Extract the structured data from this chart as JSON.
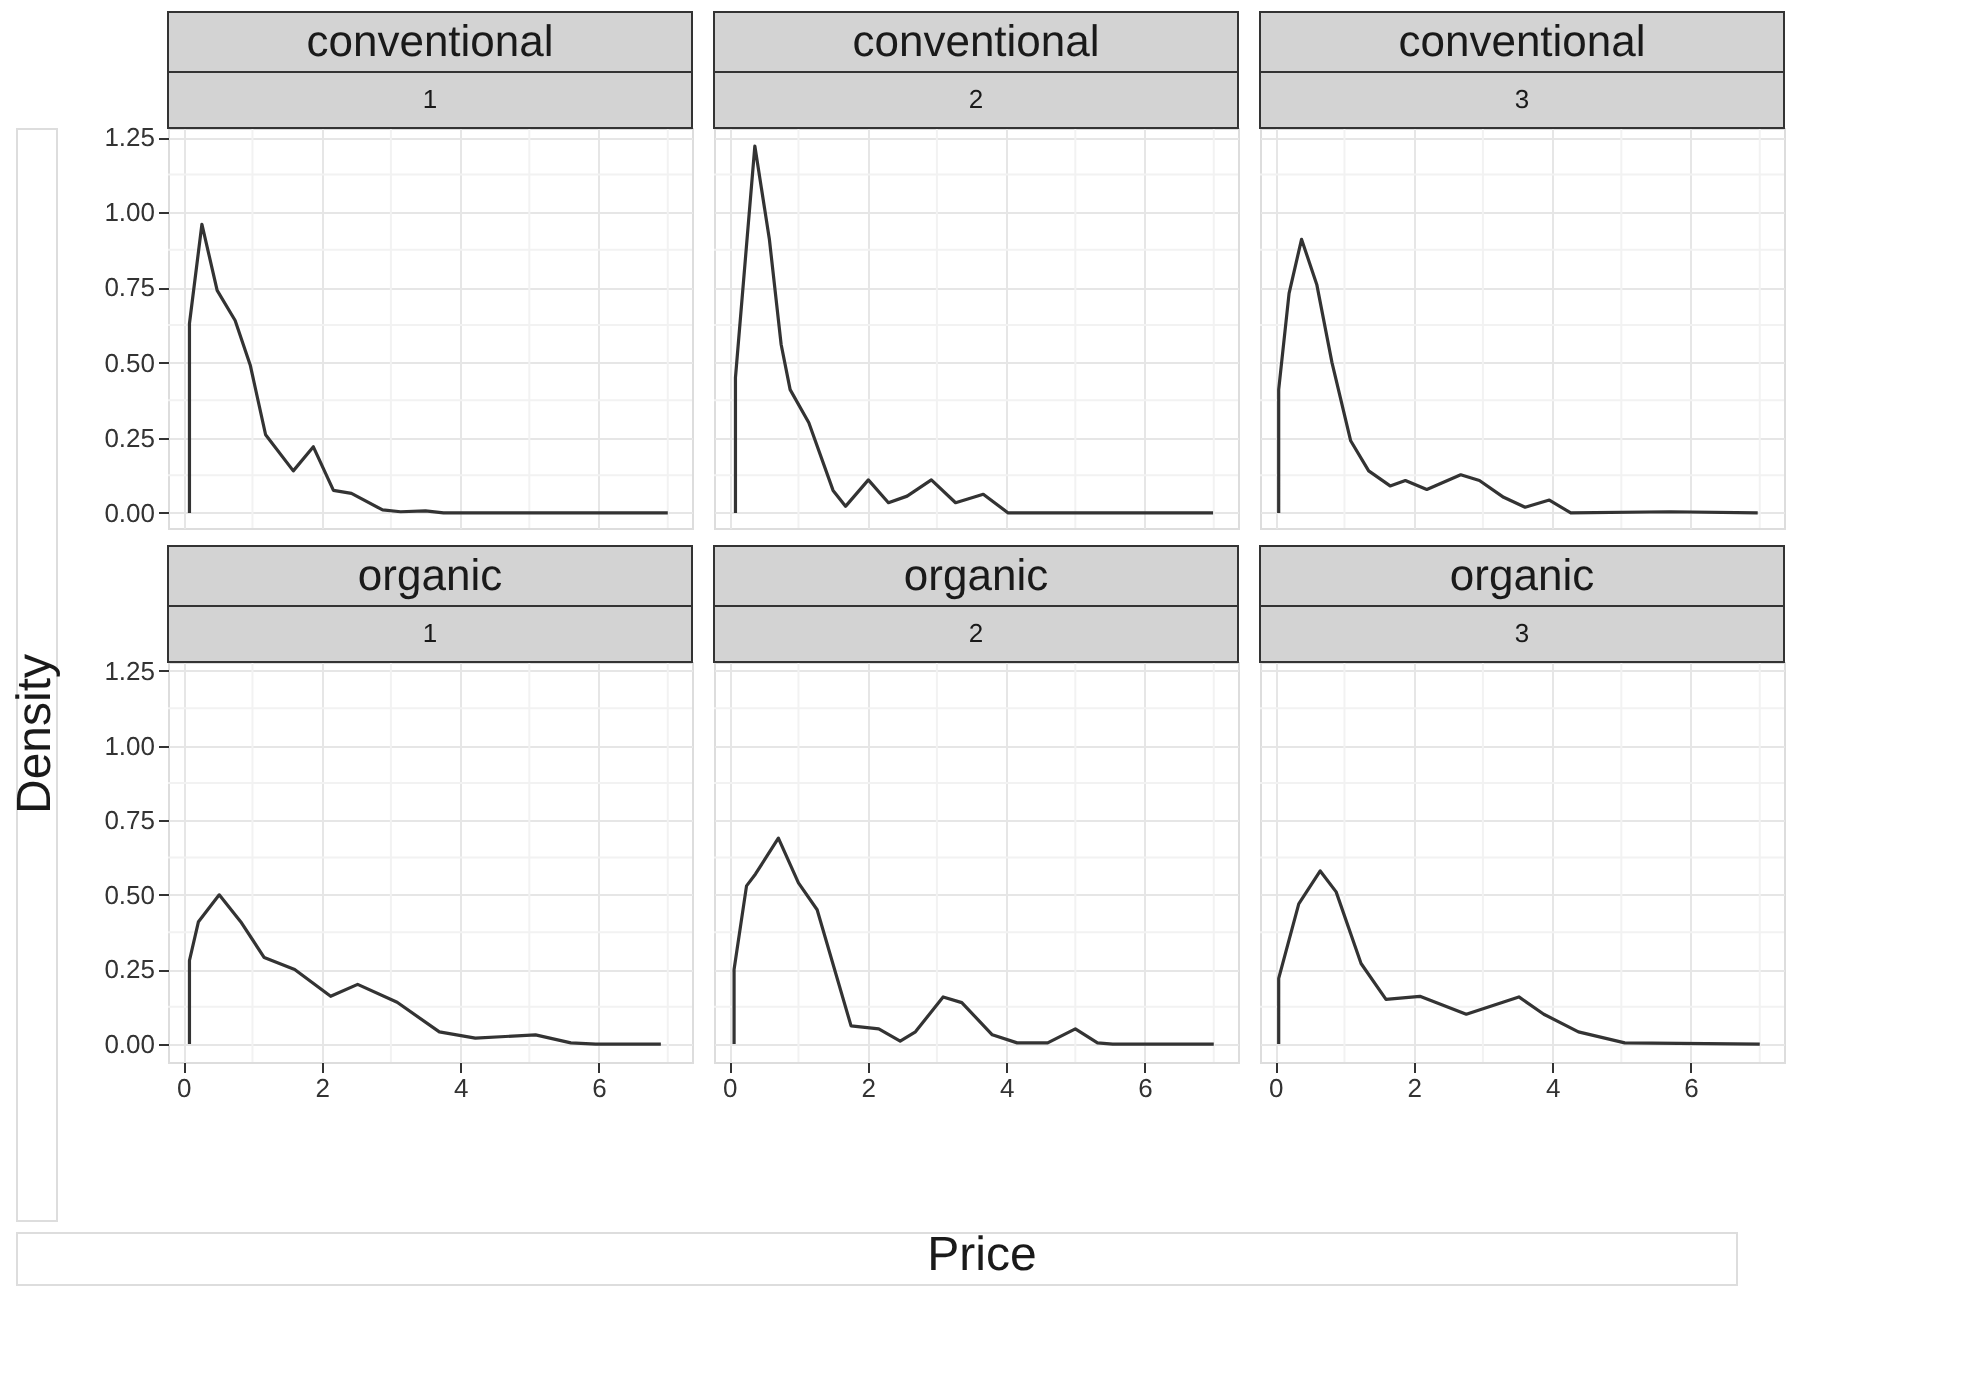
{
  "chart_data": [
    {
      "type": "line",
      "title": "conventional",
      "subtitle": "1",
      "ylabel": "Density",
      "tick_labels": "y",
      "grid": true,
      "xlim": [
        -0.22,
        7.35
      ],
      "ylim": [
        -0.05,
        1.28
      ],
      "xticks": [
        0,
        2,
        4,
        6
      ],
      "yticks": [
        {
          "value": 0,
          "label": "0.00"
        },
        {
          "value": 0.25,
          "label": "0.25"
        },
        {
          "value": 0.5,
          "label": "0.50"
        },
        {
          "value": 0.75,
          "label": "0.75"
        },
        {
          "value": 1,
          "label": "1.00"
        },
        {
          "value": 1.25,
          "label": "1.25"
        }
      ],
      "series": [
        {
          "color": "#333333",
          "x": [
            0.09,
            0.09,
            0.27,
            0.49,
            0.75,
            0.97,
            1.19,
            1.59,
            1.88,
            2.17,
            2.43,
            2.88,
            3.14,
            3.5,
            3.76,
            7.0
          ],
          "values": [
            0,
            0.63,
            0.96,
            0.74,
            0.64,
            0.49,
            0.26,
            0.14,
            0.22,
            0.075,
            0.065,
            0.01,
            0.004,
            0.007,
            0,
            0
          ]
        }
      ]
    },
    {
      "type": "line",
      "title": "conventional",
      "subtitle": "2",
      "tick_labels": false,
      "grid": true,
      "xlim": [
        -0.22,
        7.35
      ],
      "ylim": [
        -0.05,
        1.28
      ],
      "xticks": [
        0,
        2,
        4,
        6
      ],
      "yticks": [
        0,
        0.25,
        0.5,
        0.75,
        1,
        1.25
      ],
      "series": [
        {
          "color": "#333333",
          "x": [
            0.09,
            0.09,
            0.37,
            0.58,
            0.75,
            0.88,
            1.15,
            1.5,
            1.68,
            2.01,
            2.3,
            2.57,
            2.92,
            3.27,
            3.67,
            4.03,
            6.99
          ],
          "values": [
            0,
            0.45,
            1.22,
            0.91,
            0.56,
            0.41,
            0.3,
            0.075,
            0.022,
            0.11,
            0.034,
            0.056,
            0.11,
            0.034,
            0.062,
            0,
            0
          ]
        }
      ]
    },
    {
      "type": "line",
      "title": "conventional",
      "subtitle": "3",
      "tick_labels": false,
      "grid": true,
      "xlim": [
        -0.22,
        7.35
      ],
      "ylim": [
        -0.05,
        1.28
      ],
      "xticks": [
        0,
        2,
        4,
        6
      ],
      "yticks": [
        0,
        0.25,
        0.5,
        0.75,
        1,
        1.25
      ],
      "series": [
        {
          "color": "#333333",
          "x": [
            0.05,
            0.05,
            0.2,
            0.38,
            0.6,
            0.82,
            1.09,
            1.35,
            1.66,
            1.88,
            2.19,
            2.68,
            2.95,
            3.3,
            3.61,
            3.96,
            4.27,
            5.7,
            6.97
          ],
          "values": [
            0,
            0.41,
            0.73,
            0.91,
            0.76,
            0.5,
            0.24,
            0.14,
            0.09,
            0.108,
            0.078,
            0.127,
            0.108,
            0.052,
            0.019,
            0.043,
            0,
            0.004,
            0
          ]
        }
      ]
    },
    {
      "type": "line",
      "title": "organic",
      "subtitle": "1",
      "grid": true,
      "xlim": [
        -0.22,
        7.35
      ],
      "ylim": [
        -0.06,
        1.28
      ],
      "xticks": [
        0,
        2,
        4,
        6
      ],
      "yticks": [
        {
          "value": 0,
          "label": "0.00"
        },
        {
          "value": 0.25,
          "label": "0.25"
        },
        {
          "value": 0.5,
          "label": "0.50"
        },
        {
          "value": 0.75,
          "label": "0.75"
        },
        {
          "value": 1,
          "label": "1.00"
        },
        {
          "value": 1.25,
          "label": "1.25"
        }
      ],
      "series": [
        {
          "color": "#333333",
          "x": [
            0.09,
            0.09,
            0.22,
            0.52,
            0.83,
            1.17,
            1.61,
            2.13,
            2.52,
            3.09,
            3.7,
            4.22,
            5.09,
            5.6,
            5.96,
            6.9
          ],
          "values": [
            0,
            0.28,
            0.41,
            0.5,
            0.41,
            0.29,
            0.25,
            0.16,
            0.2,
            0.14,
            0.041,
            0.02,
            0.031,
            0.004,
            0,
            0
          ]
        }
      ]
    },
    {
      "type": "line",
      "title": "organic",
      "subtitle": "2",
      "xlabel": "Price",
      "tick_labels": "x",
      "grid": true,
      "xlim": [
        -0.22,
        7.35
      ],
      "ylim": [
        -0.06,
        1.28
      ],
      "xticks": [
        0,
        2,
        4,
        6
      ],
      "yticks": [
        0,
        0.25,
        0.5,
        0.75,
        1,
        1.25
      ],
      "series": [
        {
          "color": "#333333",
          "x": [
            0.07,
            0.07,
            0.25,
            0.38,
            0.71,
            1.0,
            1.27,
            1.76,
            2.16,
            2.47,
            2.69,
            3.09,
            3.36,
            3.8,
            4.16,
            4.6,
            5.0,
            5.32,
            5.54,
            7.0
          ],
          "values": [
            0,
            0.25,
            0.53,
            0.57,
            0.69,
            0.54,
            0.45,
            0.061,
            0.051,
            0.01,
            0.041,
            0.158,
            0.139,
            0.031,
            0.004,
            0.004,
            0.051,
            0.004,
            0,
            0
          ]
        }
      ]
    },
    {
      "type": "line",
      "title": "organic",
      "subtitle": "3",
      "tick_labels": "x",
      "grid": true,
      "xlim": [
        -0.22,
        7.35
      ],
      "ylim": [
        -0.06,
        1.28
      ],
      "xticks": [
        0,
        2,
        4,
        6
      ],
      "yticks": [
        0,
        0.25,
        0.5,
        0.75,
        1,
        1.25
      ],
      "series": [
        {
          "color": "#333333",
          "x": [
            0.05,
            0.05,
            0.34,
            0.65,
            0.88,
            1.24,
            1.6,
            2.09,
            2.76,
            3.52,
            3.88,
            4.38,
            5.05,
            7.0
          ],
          "values": [
            0,
            0.22,
            0.47,
            0.58,
            0.51,
            0.27,
            0.15,
            0.16,
            0.1,
            0.158,
            0.1,
            0.041,
            0.004,
            0
          ]
        }
      ]
    }
  ]
}
